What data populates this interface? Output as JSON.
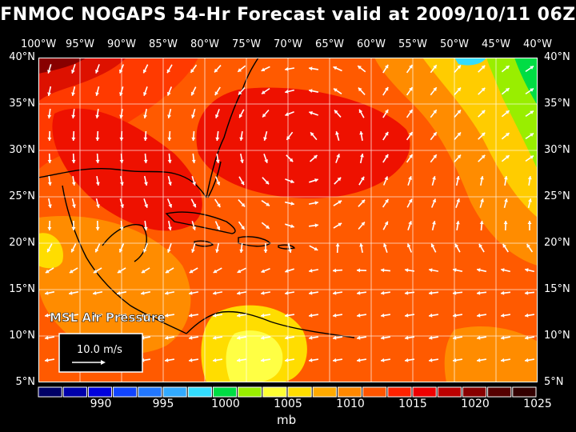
{
  "title": "FNMOC NOGAPS 54-Hr Forecast valid at 2009/10/11 06Z",
  "lon_labels": [
    "100°W",
    "95°W",
    "90°W",
    "85°W",
    "80°W",
    "75°W",
    "70°W",
    "65°W",
    "60°W",
    "55°W",
    "50°W",
    "45°W",
    "40°W"
  ],
  "lat_labels": [
    "40°N",
    "35°N",
    "30°N",
    "25°N",
    "20°N",
    "15°N",
    "10°N",
    "5°N"
  ],
  "field_label": "MSL Air Pressure",
  "scale_label": "10.0 m/s",
  "colorbar": {
    "colors": [
      "#000066",
      "#0000aa",
      "#0000dd",
      "#1144ff",
      "#2277ff",
      "#33aaff",
      "#33ddff",
      "#00dd44",
      "#99ee00",
      "#ffff33",
      "#ffdd00",
      "#ffaa00",
      "#ff8800",
      "#ff5500",
      "#ff2200",
      "#ee0000",
      "#bb0000",
      "#880000",
      "#550000",
      "#330000"
    ],
    "labels": [
      "990",
      "995",
      "1000",
      "1005",
      "1010",
      "1015",
      "1020",
      "1025"
    ]
  },
  "unit": "mb"
}
